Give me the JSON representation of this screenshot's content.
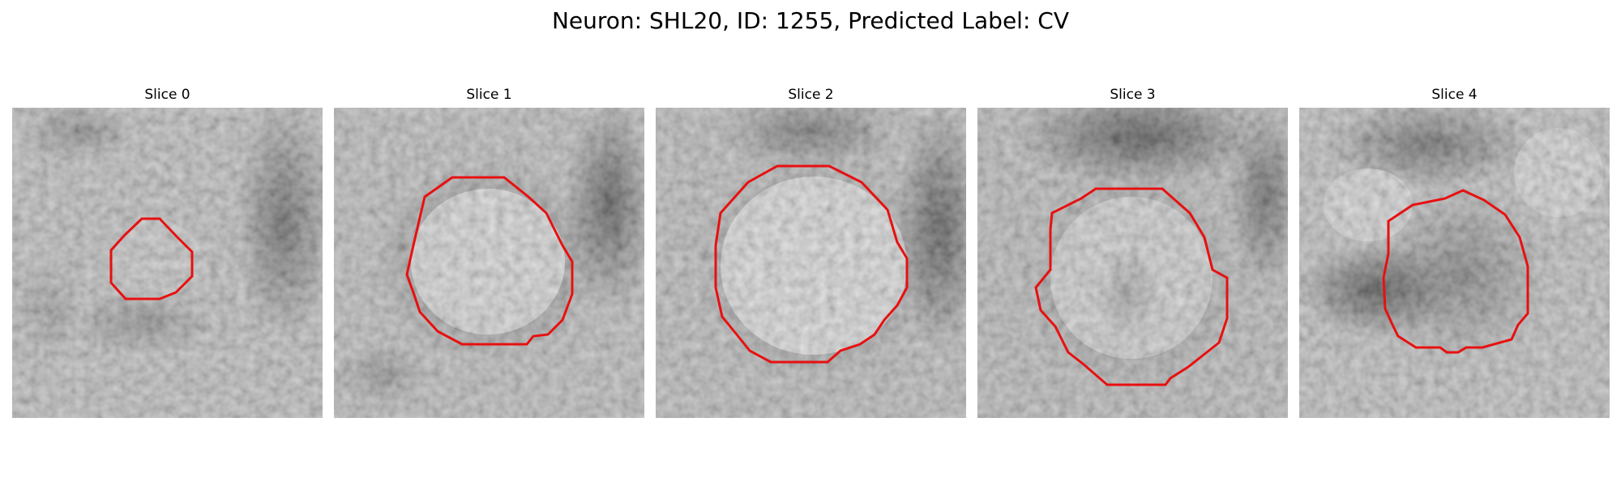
{
  "figure": {
    "title": "Neuron: SHL20, ID: 1255, Predicted Label: CV"
  },
  "contour_color": "#e81010",
  "panels": [
    {
      "title": "Slice 0"
    },
    {
      "title": "Slice 1"
    },
    {
      "title": "Slice 2"
    },
    {
      "title": "Slice 3"
    },
    {
      "title": "Slice 4"
    }
  ]
}
